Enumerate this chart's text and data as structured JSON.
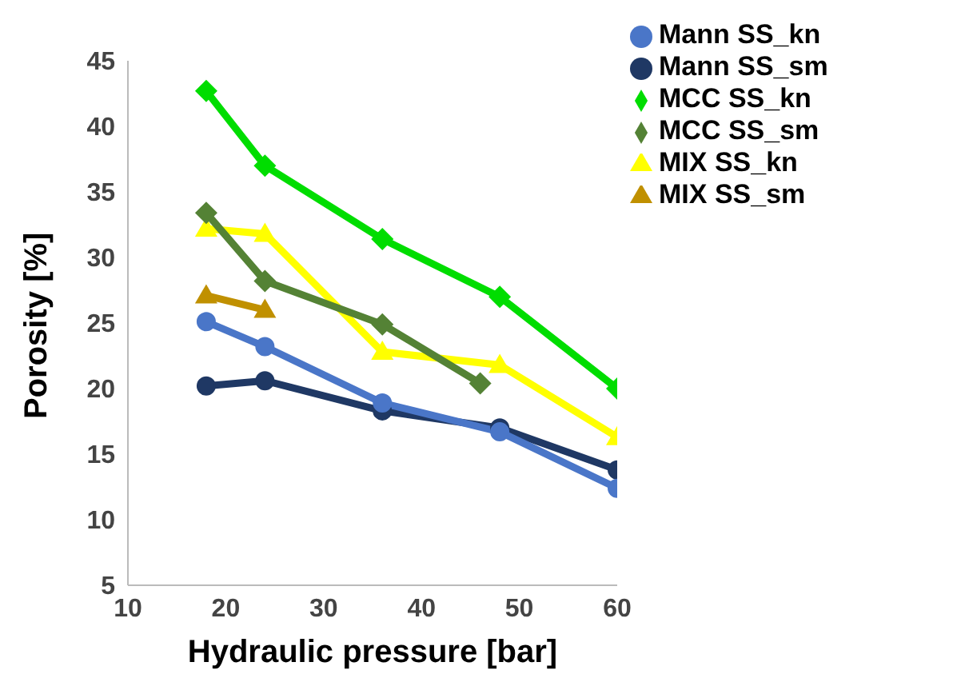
{
  "chart_data": {
    "type": "line",
    "xlabel": "Hydraulic pressure [bar]",
    "ylabel": "Porosity [%]",
    "xlim": [
      10,
      60
    ],
    "xticks": [
      10,
      20,
      30,
      40,
      50,
      60
    ],
    "ylim": [
      5,
      45
    ],
    "yticks": [
      5,
      10,
      15,
      20,
      25,
      30,
      35,
      40,
      45
    ],
    "grid": false,
    "legend": "top right",
    "line_style": "solid",
    "series": [
      {
        "name": "Mann SS_kn",
        "color": "#4a76c8",
        "marker": "circle",
        "x": [
          18,
          24,
          36,
          48,
          60
        ],
        "values": [
          25.1,
          23.2,
          18.9,
          16.7,
          12.4
        ]
      },
      {
        "name": "Mann SS_sm",
        "color": "#1f3864",
        "marker": "circle",
        "x": [
          18,
          24,
          36,
          48,
          60
        ],
        "values": [
          20.2,
          20.6,
          18.3,
          17.0,
          13.8
        ]
      },
      {
        "name": "MCC SS_kn",
        "color": "#00dd00",
        "marker": "diamond",
        "x": [
          18,
          24,
          36,
          48,
          60
        ],
        "values": [
          42.7,
          37.0,
          31.4,
          27.0,
          20.0
        ]
      },
      {
        "name": "MCC SS_sm",
        "color": "#548235",
        "marker": "diamond",
        "x": [
          18,
          24,
          36,
          46
        ],
        "values": [
          33.4,
          28.2,
          24.9,
          20.4
        ]
      },
      {
        "name": "MIX SS_kn",
        "color": "#ffff00",
        "marker": "triangle",
        "x": [
          18,
          24,
          36,
          48,
          60
        ],
        "values": [
          32.2,
          31.8,
          22.8,
          21.8,
          16.3
        ]
      },
      {
        "name": "MIX SS_sm",
        "color": "#c09000",
        "marker": "triangle",
        "x": [
          18,
          24
        ],
        "values": [
          27.1,
          26.0
        ]
      }
    ]
  }
}
